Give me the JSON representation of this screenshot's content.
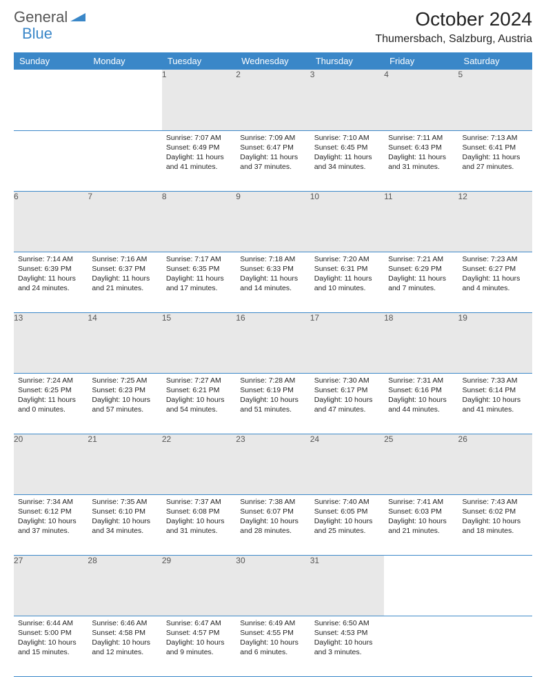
{
  "logo": {
    "text1": "General",
    "text2": "Blue"
  },
  "title": "October 2024",
  "location": "Thumersbach, Salzburg, Austria",
  "colors": {
    "header_bg": "#3a87c8",
    "daynum_bg": "#e8e8e8",
    "border": "#3a87c8"
  },
  "day_headers": [
    "Sunday",
    "Monday",
    "Tuesday",
    "Wednesday",
    "Thursday",
    "Friday",
    "Saturday"
  ],
  "weeks": [
    {
      "nums": [
        "",
        "",
        "1",
        "2",
        "3",
        "4",
        "5"
      ],
      "cells": [
        null,
        null,
        {
          "sunrise": "Sunrise: 7:07 AM",
          "sunset": "Sunset: 6:49 PM",
          "day1": "Daylight: 11 hours",
          "day2": "and 41 minutes."
        },
        {
          "sunrise": "Sunrise: 7:09 AM",
          "sunset": "Sunset: 6:47 PM",
          "day1": "Daylight: 11 hours",
          "day2": "and 37 minutes."
        },
        {
          "sunrise": "Sunrise: 7:10 AM",
          "sunset": "Sunset: 6:45 PM",
          "day1": "Daylight: 11 hours",
          "day2": "and 34 minutes."
        },
        {
          "sunrise": "Sunrise: 7:11 AM",
          "sunset": "Sunset: 6:43 PM",
          "day1": "Daylight: 11 hours",
          "day2": "and 31 minutes."
        },
        {
          "sunrise": "Sunrise: 7:13 AM",
          "sunset": "Sunset: 6:41 PM",
          "day1": "Daylight: 11 hours",
          "day2": "and 27 minutes."
        }
      ]
    },
    {
      "nums": [
        "6",
        "7",
        "8",
        "9",
        "10",
        "11",
        "12"
      ],
      "cells": [
        {
          "sunrise": "Sunrise: 7:14 AM",
          "sunset": "Sunset: 6:39 PM",
          "day1": "Daylight: 11 hours",
          "day2": "and 24 minutes."
        },
        {
          "sunrise": "Sunrise: 7:16 AM",
          "sunset": "Sunset: 6:37 PM",
          "day1": "Daylight: 11 hours",
          "day2": "and 21 minutes."
        },
        {
          "sunrise": "Sunrise: 7:17 AM",
          "sunset": "Sunset: 6:35 PM",
          "day1": "Daylight: 11 hours",
          "day2": "and 17 minutes."
        },
        {
          "sunrise": "Sunrise: 7:18 AM",
          "sunset": "Sunset: 6:33 PM",
          "day1": "Daylight: 11 hours",
          "day2": "and 14 minutes."
        },
        {
          "sunrise": "Sunrise: 7:20 AM",
          "sunset": "Sunset: 6:31 PM",
          "day1": "Daylight: 11 hours",
          "day2": "and 10 minutes."
        },
        {
          "sunrise": "Sunrise: 7:21 AM",
          "sunset": "Sunset: 6:29 PM",
          "day1": "Daylight: 11 hours",
          "day2": "and 7 minutes."
        },
        {
          "sunrise": "Sunrise: 7:23 AM",
          "sunset": "Sunset: 6:27 PM",
          "day1": "Daylight: 11 hours",
          "day2": "and 4 minutes."
        }
      ]
    },
    {
      "nums": [
        "13",
        "14",
        "15",
        "16",
        "17",
        "18",
        "19"
      ],
      "cells": [
        {
          "sunrise": "Sunrise: 7:24 AM",
          "sunset": "Sunset: 6:25 PM",
          "day1": "Daylight: 11 hours",
          "day2": "and 0 minutes."
        },
        {
          "sunrise": "Sunrise: 7:25 AM",
          "sunset": "Sunset: 6:23 PM",
          "day1": "Daylight: 10 hours",
          "day2": "and 57 minutes."
        },
        {
          "sunrise": "Sunrise: 7:27 AM",
          "sunset": "Sunset: 6:21 PM",
          "day1": "Daylight: 10 hours",
          "day2": "and 54 minutes."
        },
        {
          "sunrise": "Sunrise: 7:28 AM",
          "sunset": "Sunset: 6:19 PM",
          "day1": "Daylight: 10 hours",
          "day2": "and 51 minutes."
        },
        {
          "sunrise": "Sunrise: 7:30 AM",
          "sunset": "Sunset: 6:17 PM",
          "day1": "Daylight: 10 hours",
          "day2": "and 47 minutes."
        },
        {
          "sunrise": "Sunrise: 7:31 AM",
          "sunset": "Sunset: 6:16 PM",
          "day1": "Daylight: 10 hours",
          "day2": "and 44 minutes."
        },
        {
          "sunrise": "Sunrise: 7:33 AM",
          "sunset": "Sunset: 6:14 PM",
          "day1": "Daylight: 10 hours",
          "day2": "and 41 minutes."
        }
      ]
    },
    {
      "nums": [
        "20",
        "21",
        "22",
        "23",
        "24",
        "25",
        "26"
      ],
      "cells": [
        {
          "sunrise": "Sunrise: 7:34 AM",
          "sunset": "Sunset: 6:12 PM",
          "day1": "Daylight: 10 hours",
          "day2": "and 37 minutes."
        },
        {
          "sunrise": "Sunrise: 7:35 AM",
          "sunset": "Sunset: 6:10 PM",
          "day1": "Daylight: 10 hours",
          "day2": "and 34 minutes."
        },
        {
          "sunrise": "Sunrise: 7:37 AM",
          "sunset": "Sunset: 6:08 PM",
          "day1": "Daylight: 10 hours",
          "day2": "and 31 minutes."
        },
        {
          "sunrise": "Sunrise: 7:38 AM",
          "sunset": "Sunset: 6:07 PM",
          "day1": "Daylight: 10 hours",
          "day2": "and 28 minutes."
        },
        {
          "sunrise": "Sunrise: 7:40 AM",
          "sunset": "Sunset: 6:05 PM",
          "day1": "Daylight: 10 hours",
          "day2": "and 25 minutes."
        },
        {
          "sunrise": "Sunrise: 7:41 AM",
          "sunset": "Sunset: 6:03 PM",
          "day1": "Daylight: 10 hours",
          "day2": "and 21 minutes."
        },
        {
          "sunrise": "Sunrise: 7:43 AM",
          "sunset": "Sunset: 6:02 PM",
          "day1": "Daylight: 10 hours",
          "day2": "and 18 minutes."
        }
      ]
    },
    {
      "nums": [
        "27",
        "28",
        "29",
        "30",
        "31",
        "",
        ""
      ],
      "cells": [
        {
          "sunrise": "Sunrise: 6:44 AM",
          "sunset": "Sunset: 5:00 PM",
          "day1": "Daylight: 10 hours",
          "day2": "and 15 minutes."
        },
        {
          "sunrise": "Sunrise: 6:46 AM",
          "sunset": "Sunset: 4:58 PM",
          "day1": "Daylight: 10 hours",
          "day2": "and 12 minutes."
        },
        {
          "sunrise": "Sunrise: 6:47 AM",
          "sunset": "Sunset: 4:57 PM",
          "day1": "Daylight: 10 hours",
          "day2": "and 9 minutes."
        },
        {
          "sunrise": "Sunrise: 6:49 AM",
          "sunset": "Sunset: 4:55 PM",
          "day1": "Daylight: 10 hours",
          "day2": "and 6 minutes."
        },
        {
          "sunrise": "Sunrise: 6:50 AM",
          "sunset": "Sunset: 4:53 PM",
          "day1": "Daylight: 10 hours",
          "day2": "and 3 minutes."
        },
        null,
        null
      ]
    }
  ]
}
